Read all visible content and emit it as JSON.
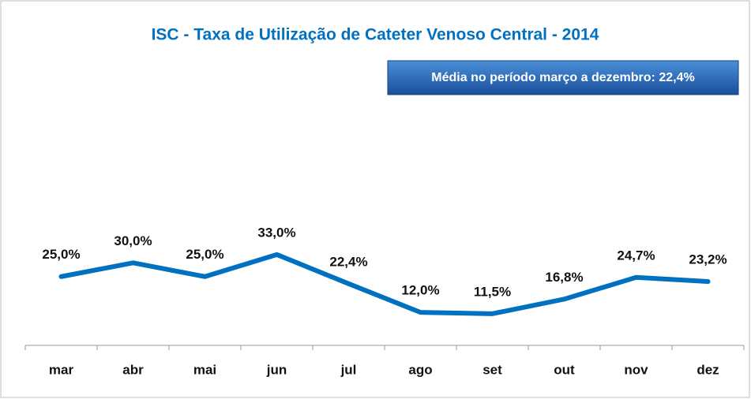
{
  "chart_data": {
    "type": "line",
    "title": "ISC - Taxa de Utilização de Cateter Venoso Central - 2014",
    "annotation": "Média no período março a dezembro: 22,4%",
    "categories": [
      "mar",
      "abr",
      "mai",
      "jun",
      "jul",
      "ago",
      "set",
      "out",
      "nov",
      "dez"
    ],
    "values": [
      25.0,
      30.0,
      25.0,
      33.0,
      22.4,
      12.0,
      11.5,
      16.8,
      24.7,
      23.2
    ],
    "value_labels": [
      "25,0%",
      "30,0%",
      "25,0%",
      "33,0%",
      "22,4%",
      "12,0%",
      "11,5%",
      "16,8%",
      "24,7%",
      "23,2%"
    ],
    "color": "#0070c0",
    "ylim": [
      0,
      100
    ]
  }
}
